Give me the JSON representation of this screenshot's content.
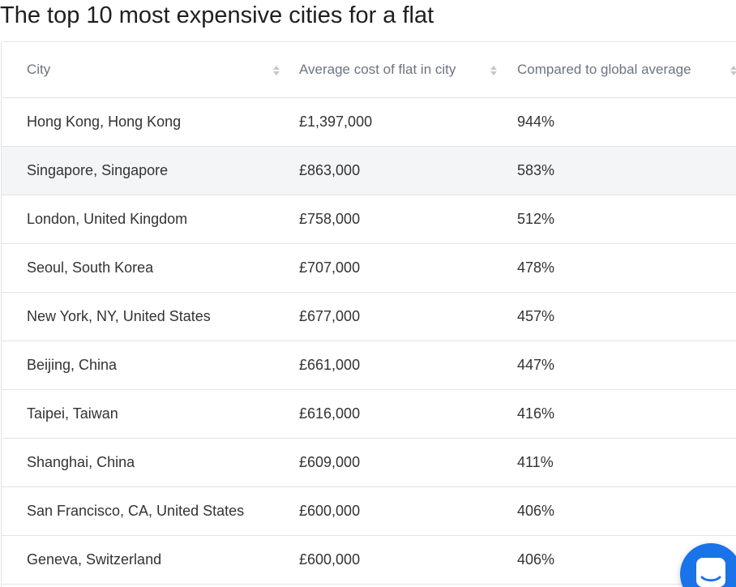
{
  "title": "The top 10 most expensive cities for a flat",
  "table": {
    "headers": [
      "City",
      "Average cost of flat in city",
      "Compared to global average"
    ],
    "rows": [
      [
        "Hong Kong, Hong Kong",
        "£1,397,000",
        "944%"
      ],
      [
        "Singapore, Singapore",
        "£863,000",
        "583%"
      ],
      [
        "London, United Kingdom",
        "£758,000",
        "512%"
      ],
      [
        "Seoul, South Korea",
        "£707,000",
        "478%"
      ],
      [
        "New York, NY, United States",
        "£677,000",
        "457%"
      ],
      [
        "Beijing, China",
        "£661,000",
        "447%"
      ],
      [
        "Taipei, Taiwan",
        "£616,000",
        "416%"
      ],
      [
        "Shanghai, China",
        "£609,000",
        "411%"
      ],
      [
        "San Francisco, CA, United States",
        "£600,000",
        "406%"
      ],
      [
        "Geneva, Switzerland",
        "£600,000",
        "406%"
      ]
    ]
  },
  "icons": {
    "sort": "sort-icon",
    "chat": "chat-icon"
  },
  "colors": {
    "header_text": "#6d7480",
    "row_stripe": "#f4f5f7",
    "border": "#e3e3e3",
    "chat_button": "#1a73e8"
  }
}
